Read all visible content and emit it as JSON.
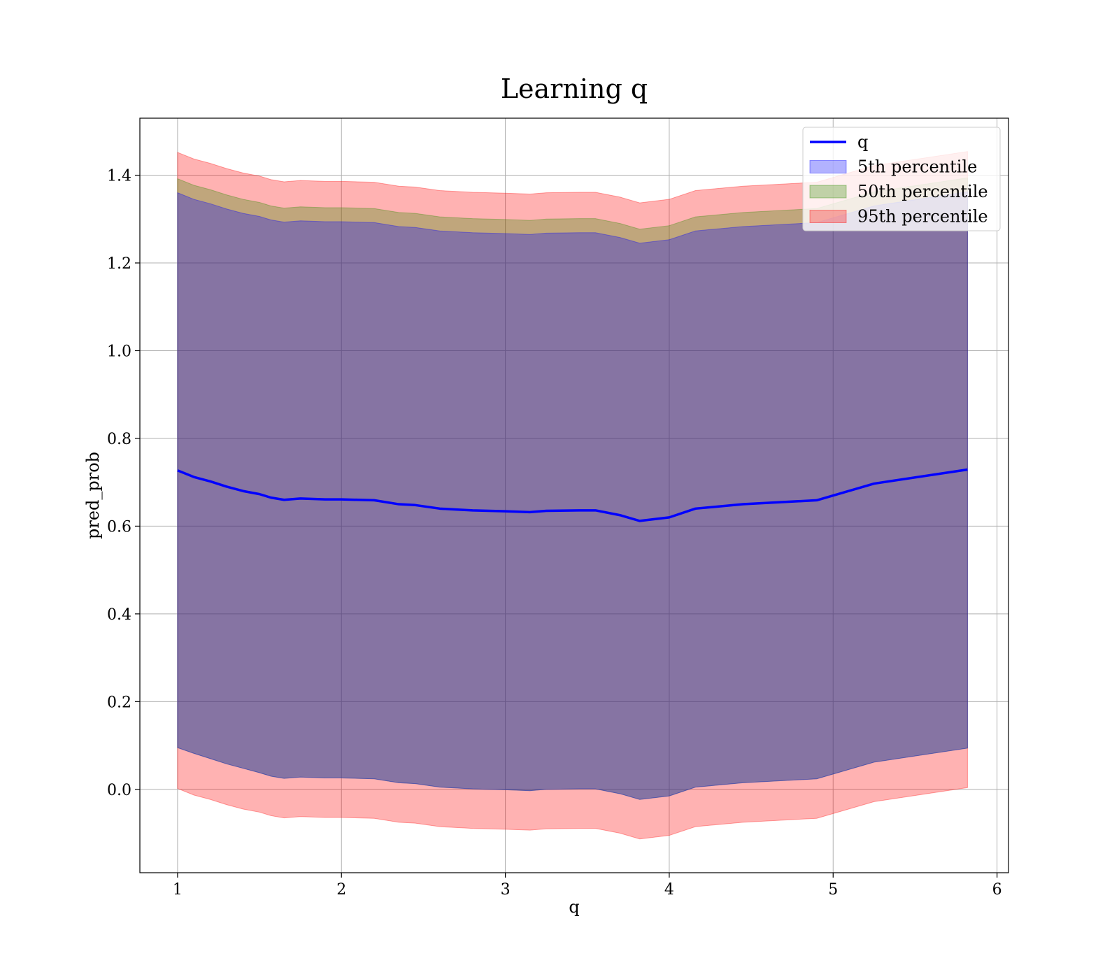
{
  "chart_data": {
    "type": "area",
    "title": "Learning q",
    "xlabel": "q",
    "ylabel": "pred_prob",
    "xlim": [
      0.77,
      6.07
    ],
    "ylim": [
      -0.19,
      1.53
    ],
    "xticks": [
      "1",
      "2",
      "3",
      "4",
      "5",
      "6"
    ],
    "yticks": [
      "0.0",
      "0.2",
      "0.4",
      "0.6",
      "0.8",
      "1.0",
      "1.2",
      "1.4"
    ],
    "grid": true,
    "legend_position": "top-right",
    "x": [
      1.0,
      1.1,
      1.2,
      1.3,
      1.4,
      1.5,
      1.57,
      1.65,
      1.75,
      1.9,
      2.0,
      2.1,
      2.2,
      2.35,
      2.45,
      2.6,
      2.7,
      2.8,
      3.0,
      3.15,
      3.25,
      3.45,
      3.55,
      3.7,
      3.82,
      4.0,
      4.16,
      4.45,
      4.9,
      5.25,
      5.82
    ],
    "series": [
      {
        "name": "q",
        "color": "#0000ff",
        "style": "line",
        "values": [
          0.727,
          0.712,
          0.702,
          0.69,
          0.68,
          0.673,
          0.665,
          0.66,
          0.663,
          0.661,
          0.661,
          0.66,
          0.659,
          0.65,
          0.648,
          0.64,
          0.638,
          0.636,
          0.634,
          0.632,
          0.635,
          0.636,
          0.636,
          0.625,
          0.612,
          0.62,
          0.64,
          0.65,
          0.659,
          0.697,
          0.729
        ]
      },
      {
        "name": "5th percentile",
        "color": "#0000ff",
        "style": "band",
        "lower": [
          0.095,
          0.082,
          0.07,
          0.058,
          0.048,
          0.038,
          0.03,
          0.025,
          0.028,
          0.026,
          0.026,
          0.025,
          0.024,
          0.015,
          0.013,
          0.005,
          0.003,
          0.001,
          -0.001,
          -0.003,
          0.0,
          0.001,
          0.001,
          -0.01,
          -0.023,
          -0.015,
          0.005,
          0.015,
          0.024,
          0.062,
          0.094
        ],
        "upper": [
          1.36,
          1.345,
          1.335,
          1.323,
          1.313,
          1.306,
          1.298,
          1.293,
          1.296,
          1.294,
          1.294,
          1.293,
          1.292,
          1.283,
          1.281,
          1.273,
          1.271,
          1.269,
          1.267,
          1.265,
          1.268,
          1.269,
          1.269,
          1.258,
          1.245,
          1.253,
          1.273,
          1.283,
          1.292,
          1.33,
          1.362
        ]
      },
      {
        "name": "50th percentile",
        "color": "#2e8b00",
        "style": "band",
        "lower": [
          0.095,
          0.082,
          0.07,
          0.058,
          0.048,
          0.038,
          0.03,
          0.025,
          0.028,
          0.026,
          0.026,
          0.025,
          0.024,
          0.015,
          0.013,
          0.005,
          0.003,
          0.001,
          -0.001,
          -0.003,
          0.0,
          0.001,
          0.001,
          -0.01,
          -0.023,
          -0.015,
          0.005,
          0.015,
          0.024,
          0.062,
          0.094
        ],
        "upper": [
          1.392,
          1.377,
          1.367,
          1.355,
          1.345,
          1.338,
          1.33,
          1.325,
          1.328,
          1.326,
          1.326,
          1.325,
          1.324,
          1.315,
          1.313,
          1.305,
          1.303,
          1.301,
          1.299,
          1.297,
          1.3,
          1.301,
          1.301,
          1.29,
          1.277,
          1.285,
          1.305,
          1.315,
          1.324,
          1.362,
          1.394
        ]
      },
      {
        "name": "95th percentile",
        "color": "#ff0000",
        "style": "band",
        "lower": [
          0.002,
          -0.013,
          -0.023,
          -0.035,
          -0.045,
          -0.052,
          -0.06,
          -0.065,
          -0.062,
          -0.064,
          -0.064,
          -0.065,
          -0.066,
          -0.075,
          -0.077,
          -0.085,
          -0.087,
          -0.089,
          -0.091,
          -0.093,
          -0.09,
          -0.089,
          -0.089,
          -0.1,
          -0.113,
          -0.105,
          -0.085,
          -0.075,
          -0.066,
          -0.028,
          0.004
        ],
        "upper": [
          1.452,
          1.437,
          1.427,
          1.415,
          1.405,
          1.398,
          1.39,
          1.385,
          1.388,
          1.386,
          1.386,
          1.385,
          1.384,
          1.375,
          1.373,
          1.365,
          1.363,
          1.361,
          1.359,
          1.357,
          1.36,
          1.361,
          1.361,
          1.35,
          1.337,
          1.345,
          1.365,
          1.375,
          1.384,
          1.422,
          1.454
        ]
      }
    ]
  }
}
